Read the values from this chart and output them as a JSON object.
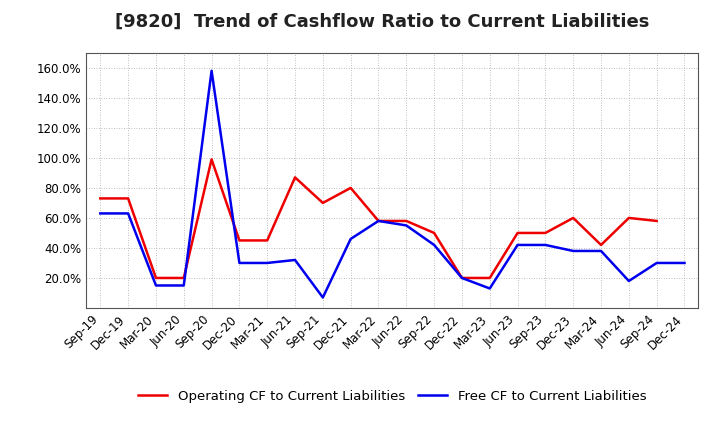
{
  "title": "[9820]  Trend of Cashflow Ratio to Current Liabilities",
  "x_labels": [
    "Sep-19",
    "Dec-19",
    "Mar-20",
    "Jun-20",
    "Sep-20",
    "Dec-20",
    "Mar-21",
    "Jun-21",
    "Sep-21",
    "Dec-21",
    "Mar-22",
    "Jun-22",
    "Sep-22",
    "Dec-22",
    "Mar-23",
    "Jun-23",
    "Sep-23",
    "Dec-23",
    "Mar-24",
    "Jun-24",
    "Sep-24",
    "Dec-24"
  ],
  "operating_cf": [
    73,
    73,
    20,
    20,
    99,
    45,
    45,
    87,
    70,
    80,
    58,
    58,
    50,
    20,
    20,
    50,
    50,
    60,
    42,
    60,
    58,
    null
  ],
  "free_cf": [
    63,
    63,
    15,
    15,
    158,
    30,
    30,
    32,
    7,
    46,
    58,
    55,
    42,
    20,
    13,
    42,
    42,
    38,
    38,
    18,
    30,
    30
  ],
  "operating_color": "#ee0000",
  "free_color": "#0000ee",
  "ylim": [
    0,
    170
  ],
  "yticks": [
    20,
    40,
    60,
    80,
    100,
    120,
    140,
    160
  ],
  "legend_labels": [
    "Operating CF to Current Liabilities",
    "Free CF to Current Liabilities"
  ],
  "grid_color": "#aaaaaa",
  "background_color": "#ffffff",
  "title_fontsize": 13,
  "axis_fontsize": 8.5,
  "legend_fontsize": 9.5
}
